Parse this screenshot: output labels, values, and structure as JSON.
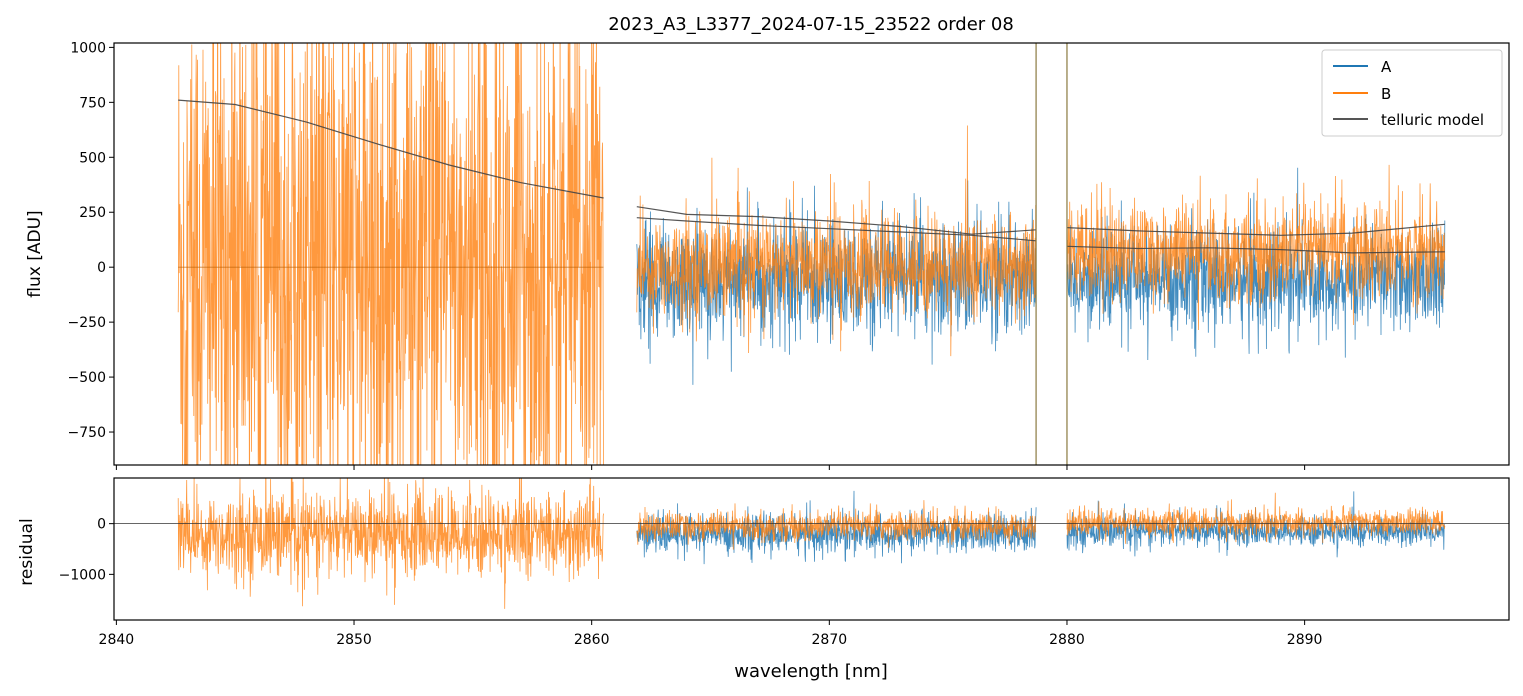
{
  "chart_data": [
    {
      "type": "line",
      "title": "2023_A3_L3377_2024-07-15_23522  order 08",
      "xlabel": "",
      "ylabel": "flux [ADU]",
      "xlim": [
        2839.9,
        2898.6
      ],
      "ylim": [
        -900,
        1020
      ],
      "x_ticks": [
        2840,
        2850,
        2860,
        2870,
        2880,
        2890
      ],
      "y_ticks": [
        -750,
        -500,
        -250,
        0,
        250,
        500,
        750,
        1000
      ],
      "y_tick_labels": [
        "−750",
        "−500",
        "−250",
        "0",
        "250",
        "500",
        "750",
        "1000"
      ],
      "legend": {
        "placement": "upper right",
        "entries": [
          "A",
          "B",
          "telluric model"
        ]
      },
      "colors": {
        "A": "#1f77b4",
        "B": "#ff7f0e",
        "telluric model": "#444444"
      },
      "segments": [
        {
          "x_range": [
            2842.6,
            2860.5
          ],
          "A_present": false,
          "B_center": 0,
          "B_spread": 1200,
          "model_B": [
            [
              2842.6,
              760
            ],
            [
              2845,
              740
            ],
            [
              2848,
              660
            ],
            [
              2851,
              560
            ],
            [
              2854,
              465
            ],
            [
              2857,
              385
            ],
            [
              2860.5,
              315
            ]
          ]
        },
        {
          "x_range": [
            2861.9,
            2878.7
          ],
          "A_center": -60,
          "A_spread": 230,
          "B_center": 10,
          "B_spread": 210,
          "model_A": [
            [
              2861.9,
              225
            ],
            [
              2864,
              210
            ],
            [
              2867,
              190
            ],
            [
              2870,
              175
            ],
            [
              2873,
              160
            ],
            [
              2876,
              145
            ],
            [
              2878.7,
              120
            ]
          ],
          "model_B": [
            [
              2861.9,
              275
            ],
            [
              2864,
              240
            ],
            [
              2867,
              230
            ],
            [
              2870,
              210
            ],
            [
              2873,
              185
            ],
            [
              2876,
              150
            ],
            [
              2878.7,
              170
            ]
          ]
        },
        {
          "x_range": [
            2880.0,
            2895.9
          ],
          "A_center": -60,
          "A_spread": 200,
          "B_center": 70,
          "B_spread": 200,
          "model_A": [
            [
              2880.0,
              95
            ],
            [
              2883,
              85
            ],
            [
              2886,
              88
            ],
            [
              2889,
              80
            ],
            [
              2892,
              65
            ],
            [
              2895.9,
              70
            ]
          ],
          "model_B": [
            [
              2880.0,
              180
            ],
            [
              2883,
              165
            ],
            [
              2886,
              155
            ],
            [
              2889,
              145
            ],
            [
              2892,
              155
            ],
            [
              2895.9,
              195
            ]
          ]
        }
      ]
    },
    {
      "type": "line",
      "title": "",
      "xlabel": "wavelength [nm]",
      "ylabel": "residual",
      "xlim": [
        2839.9,
        2898.6
      ],
      "ylim": [
        -1900,
        900
      ],
      "x_ticks": [
        2840,
        2850,
        2860,
        2870,
        2880,
        2890
      ],
      "y_ticks": [
        -1000,
        0
      ],
      "y_tick_labels": [
        "−1000",
        "0"
      ],
      "zero_line": true,
      "segments": [
        {
          "x_range": [
            2842.6,
            2860.5
          ],
          "A_present": false,
          "B_center": -200,
          "B_spread": 750
        },
        {
          "x_range": [
            2861.9,
            2878.7
          ],
          "A_center": -200,
          "A_spread": 330,
          "B_center": -50,
          "B_spread": 260
        },
        {
          "x_range": [
            2880.0,
            2895.9
          ],
          "A_center": -150,
          "A_spread": 260,
          "B_center": 20,
          "B_spread": 230
        }
      ]
    }
  ]
}
